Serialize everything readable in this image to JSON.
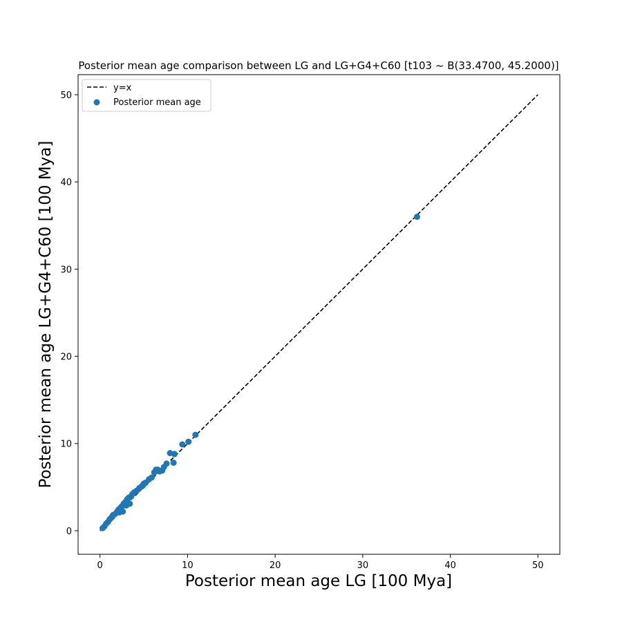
{
  "chart_data": {
    "type": "scatter",
    "title": "Posterior mean age comparison between LG and LG+G4+C60 [t103 ~ B(33.4700, 45.2000)]",
    "xlabel": "Posterior mean age LG [100 Mya]",
    "ylabel": "Posterior mean age LG+G4+C60 [100 Mya]",
    "xlim": [
      -2.5,
      52.5
    ],
    "ylim": [
      -2.7,
      52.3
    ],
    "xticks": [
      0,
      10,
      20,
      30,
      40,
      50
    ],
    "yticks": [
      0,
      10,
      20,
      30,
      40,
      50
    ],
    "grid": false,
    "legend_position": "top-left",
    "colors": {
      "scatter": "#1f77b4",
      "line": "#000000"
    },
    "series": [
      {
        "name": "y=x",
        "kind": "line",
        "style": "dashed",
        "x": [
          0,
          50
        ],
        "y": [
          0,
          50
        ]
      },
      {
        "name": "Posterior mean age",
        "kind": "scatter",
        "x": [
          0.3,
          0.5,
          0.7,
          0.9,
          1.1,
          1.3,
          1.5,
          1.7,
          1.9,
          2.1,
          2.3,
          2.5,
          2.7,
          2.9,
          3.1,
          3.3,
          3.5,
          3.7,
          3.9,
          4.2,
          4.5,
          4.8,
          5.0,
          5.2,
          5.6,
          5.9,
          6.2,
          6.4,
          6.8,
          7.1,
          7.3,
          7.6,
          8.0,
          8.4,
          8.5,
          9.4,
          10.1,
          10.9,
          36.2,
          2.2,
          2.6,
          3.0,
          3.4,
          1.4,
          4.9,
          6.6
        ],
        "y": [
          0.3,
          0.5,
          0.8,
          1.0,
          1.3,
          1.5,
          1.8,
          1.9,
          2.1,
          2.4,
          2.6,
          2.8,
          3.1,
          3.3,
          3.6,
          3.8,
          3.9,
          4.2,
          4.4,
          4.6,
          4.9,
          5.1,
          5.4,
          5.5,
          5.9,
          6.1,
          6.7,
          7.0,
          6.8,
          6.9,
          7.3,
          7.7,
          8.9,
          7.8,
          8.8,
          9.9,
          10.2,
          11.0,
          36.0,
          2.1,
          2.2,
          2.9,
          3.1,
          1.6,
          5.2,
          7.0
        ]
      }
    ]
  }
}
